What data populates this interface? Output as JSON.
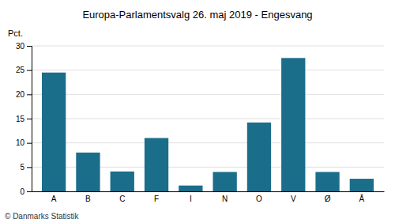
{
  "chart_data": {
    "type": "bar",
    "title": "Europa-Parlamentsvalg 26. maj 2019 - Engesvang",
    "ylabel": "Pct.",
    "footer": "© Danmarks Statistik",
    "categories": [
      "A",
      "B",
      "C",
      "F",
      "I",
      "N",
      "O",
      "V",
      "Ø",
      "Å"
    ],
    "values": [
      24.5,
      8.0,
      4.1,
      11.0,
      1.2,
      4.0,
      14.2,
      27.5,
      4.0,
      2.6
    ],
    "color": "#1a6e8a",
    "ylim": [
      0,
      30
    ],
    "yticks": [
      0,
      5,
      10,
      15,
      20,
      25,
      30
    ],
    "grid": true
  }
}
